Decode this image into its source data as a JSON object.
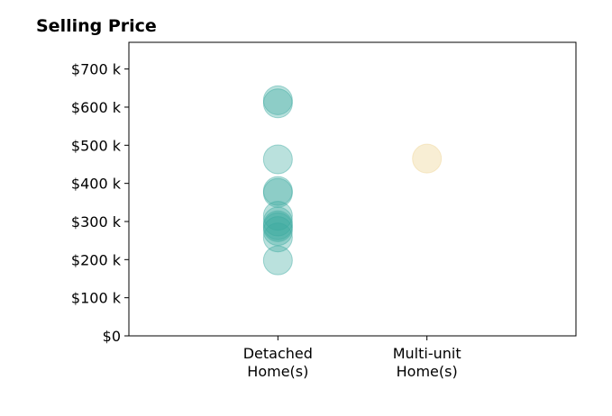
{
  "chart_data": {
    "type": "scatter",
    "title": "Selling Price",
    "xlabel": "",
    "ylabel": "",
    "categories": [
      "Detached\nHome(s)",
      "Multi-unit\nHome(s)"
    ],
    "xlim": [
      -1,
      2
    ],
    "ylim": [
      0,
      770000
    ],
    "y_ticks": [
      0,
      100000,
      200000,
      300000,
      400000,
      500000,
      600000,
      700000
    ],
    "y_tick_labels": [
      "$0",
      "$100 k",
      "$200 k",
      "$300 k",
      "$400 k",
      "$500 k",
      "$600 k",
      "$700 k"
    ],
    "grid": false,
    "legend": "none",
    "series": [
      {
        "color": "#3aa99f",
        "opacity": 0.35,
        "points": [
          {
            "x": 0,
            "y": 610000
          },
          {
            "x": 0,
            "y": 618000
          },
          {
            "x": 0,
            "y": 463000
          },
          {
            "x": 0,
            "y": 380000
          },
          {
            "x": 0,
            "y": 375000
          },
          {
            "x": 0,
            "y": 315000
          },
          {
            "x": 0,
            "y": 300000
          },
          {
            "x": 0,
            "y": 290000
          },
          {
            "x": 0,
            "y": 285000
          },
          {
            "x": 0,
            "y": 275000
          },
          {
            "x": 0,
            "y": 258000
          },
          {
            "x": 0,
            "y": 198000
          }
        ]
      },
      {
        "color": "#f0d9a0",
        "opacity": 0.45,
        "points": [
          {
            "x": 1,
            "y": 465000
          }
        ]
      }
    ]
  }
}
